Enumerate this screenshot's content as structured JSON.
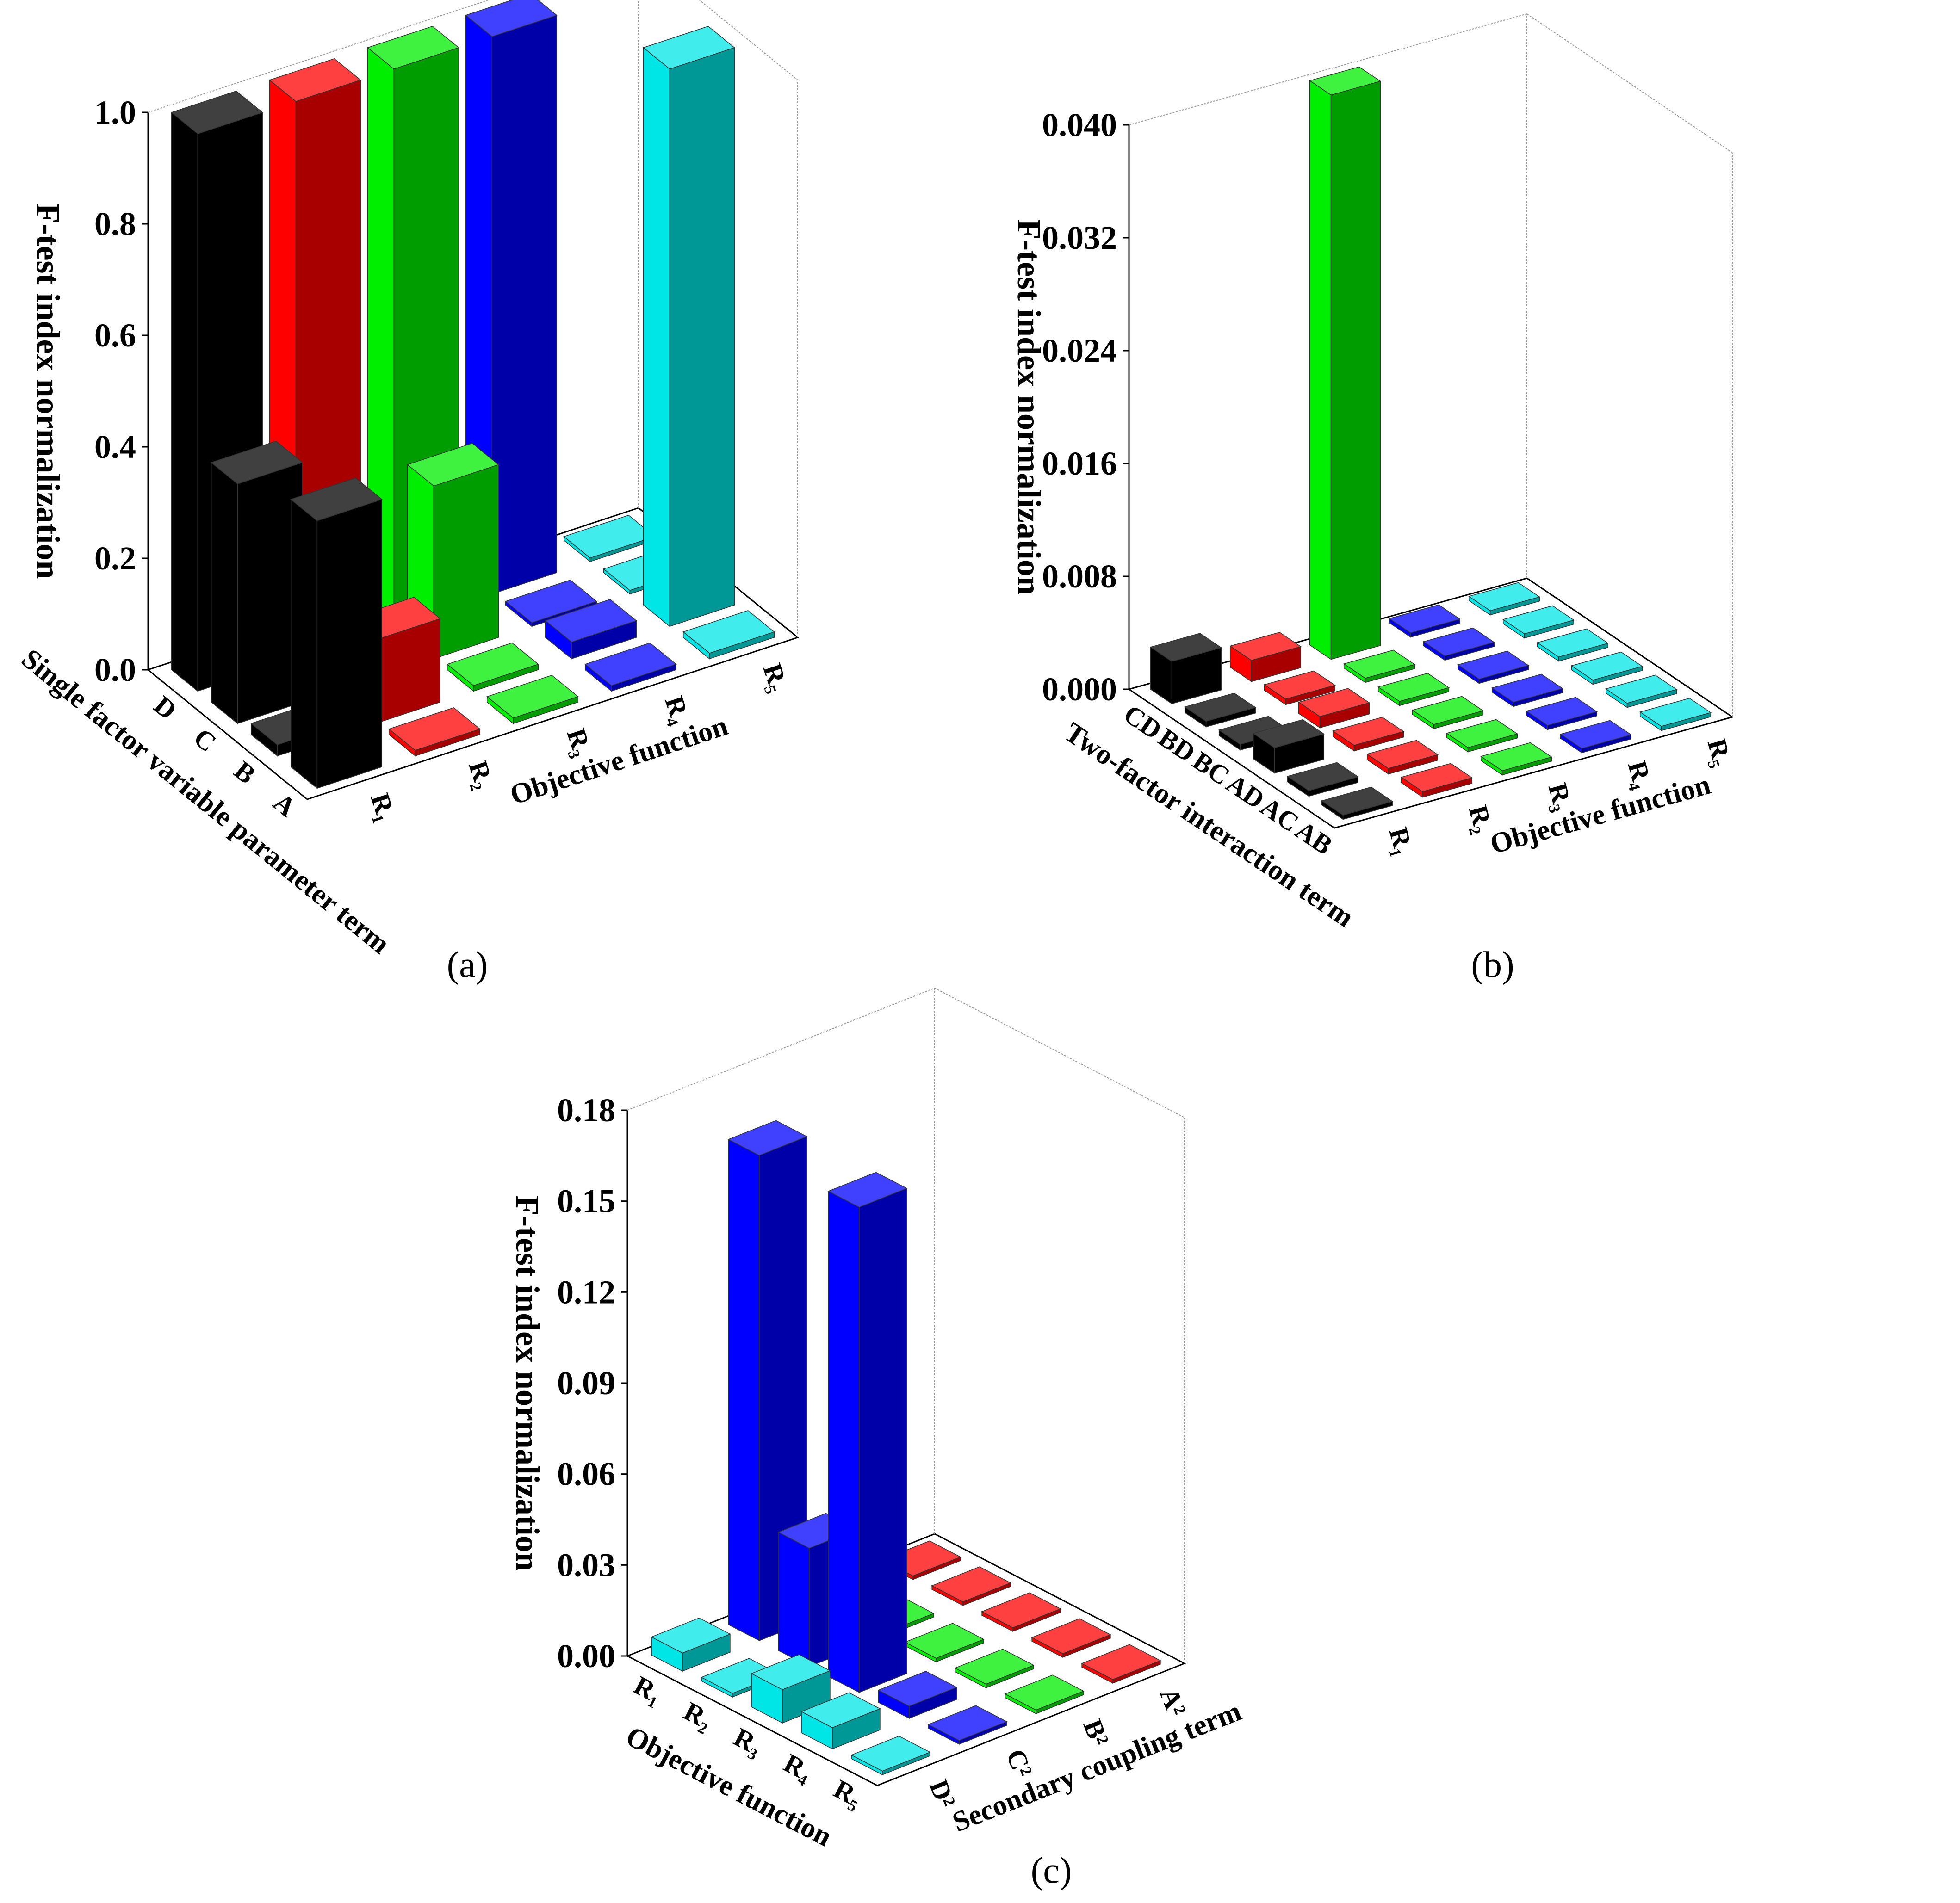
{
  "figure": {
    "panels": [
      {
        "id": "a",
        "caption": "(a)"
      },
      {
        "id": "b",
        "caption": "(b)"
      },
      {
        "id": "c",
        "caption": "(c)"
      }
    ]
  },
  "chart_data": [
    {
      "panel": "a",
      "type": "bar3d",
      "ylabel": "F-test index normalization",
      "xlabel": "Single factor variable parameter term",
      "zlabel": "Objective function",
      "ylim": [
        0,
        1.0
      ],
      "yticks": [
        "0.0",
        "0.2",
        "0.4",
        "0.6",
        "0.8",
        "1.0"
      ],
      "categories": [
        "D",
        "C",
        "B",
        "A"
      ],
      "series": [
        {
          "name": "R1",
          "label": "R₁",
          "color": "#000000",
          "values": [
            1.0,
            0.43,
            0.02,
            0.48
          ]
        },
        {
          "name": "R2",
          "label": "R₂",
          "color": "#ff0000",
          "values": [
            1.0,
            0.06,
            0.15,
            0.01
          ]
        },
        {
          "name": "R3",
          "label": "R₃",
          "color": "#00ee00",
          "values": [
            1.0,
            0.31,
            0.01,
            0.01
          ]
        },
        {
          "name": "R4",
          "label": "R₄",
          "color": "#0000ff",
          "values": [
            1.0,
            0.0,
            0.03,
            0.01
          ]
        },
        {
          "name": "R5",
          "label": "R₅",
          "color": "#00e5e5",
          "values": [
            0.004,
            0.006,
            1.0,
            0.01
          ]
        }
      ]
    },
    {
      "panel": "b",
      "type": "bar3d",
      "ylabel": "F-test index normalization",
      "xlabel": "Two-factor interaction term",
      "zlabel": "Objective function",
      "ylim": [
        0,
        0.04
      ],
      "yticks": [
        "0.000",
        "0.008",
        "0.016",
        "0.024",
        "0.032",
        "0.040"
      ],
      "categories": [
        "CD",
        "BD",
        "BC",
        "AD",
        "AC",
        "AB"
      ],
      "series": [
        {
          "name": "R1",
          "label": "R₁",
          "color": "#000000",
          "values": [
            0.003,
            0.0004,
            0.0004,
            0.0018,
            0.0004,
            0.0003
          ]
        },
        {
          "name": "R2",
          "label": "R₂",
          "color": "#ff0000",
          "values": [
            0.0015,
            0.0004,
            0.0008,
            0.0004,
            0.0004,
            0.0004
          ]
        },
        {
          "name": "R3",
          "label": "R₃",
          "color": "#00ee00",
          "values": [
            0.04,
            0.0003,
            0.0003,
            0.0003,
            0.0003,
            0.0003
          ]
        },
        {
          "name": "R4",
          "label": "R₄",
          "color": "#0000ff",
          "values": [
            0.0003,
            0.0003,
            0.0003,
            0.0003,
            0.0003,
            0.0003
          ]
        },
        {
          "name": "R5",
          "label": "R₅",
          "color": "#00e5e5",
          "values": [
            0.0003,
            0.0003,
            0.0003,
            0.0003,
            0.0003,
            0.0003
          ]
        }
      ]
    },
    {
      "panel": "c",
      "type": "bar3d",
      "ylabel": "F-test index normalization",
      "xlabel": "Objective function",
      "zlabel": "Secondary coupling term",
      "ylim": [
        0,
        0.18
      ],
      "yticks": [
        "0.00",
        "0.03",
        "0.06",
        "0.09",
        "0.12",
        "0.15",
        "0.18"
      ],
      "categories": [
        "R₁",
        "R₂",
        "R₃",
        "R₄",
        "R₅"
      ],
      "series": [
        {
          "name": "D2",
          "label": "D²",
          "color": "#00e5e5",
          "values": [
            0.006,
            0.0008,
            0.011,
            0.007,
            0.0008
          ]
        },
        {
          "name": "C2",
          "label": "C²",
          "color": "#0000ff",
          "values": [
            0.16,
            0.039,
            0.16,
            0.004,
            0.0007
          ]
        },
        {
          "name": "B2",
          "label": "B²",
          "color": "#00ee00",
          "values": [
            0.002,
            0.0007,
            0.0007,
            0.0007,
            0.0007
          ]
        },
        {
          "name": "A2",
          "label": "A²",
          "color": "#ff0000",
          "values": [
            0.0007,
            0.0007,
            0.0007,
            0.0007,
            0.0007
          ]
        }
      ]
    }
  ]
}
